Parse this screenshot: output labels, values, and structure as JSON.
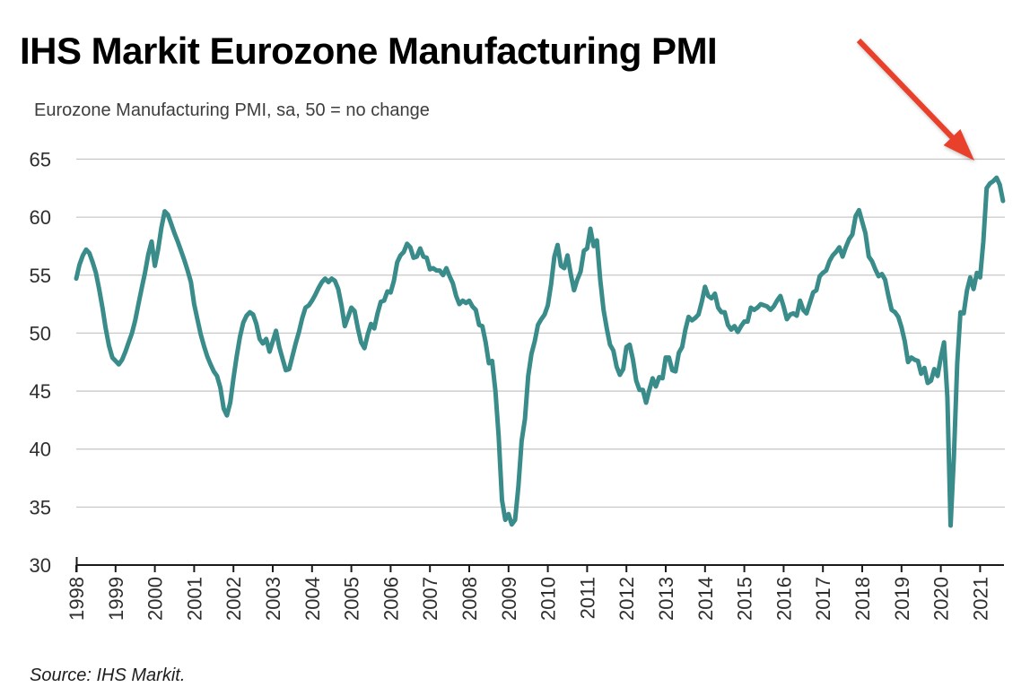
{
  "title": "IHS Markit Eurozone Manufacturing PMI",
  "subtitle": "Eurozone Manufacturing PMI, sa, 50 = no change",
  "source": "Source: IHS Markit.",
  "colors": {
    "line": "#398c8a",
    "arrow": "#e8402a",
    "grid": "#c9c9c9",
    "axis": "#1a1a1a",
    "tick_text": "#2e2e2e"
  },
  "chart_data": {
    "type": "line",
    "title": "Eurozone Manufacturing PMI, sa, 50 = no change",
    "series_name": "Eurozone Manufacturing PMI (sa)",
    "frequency": "monthly",
    "first_month": "1998-01",
    "last_month": "2021-08",
    "xlabel": "",
    "ylabel": "",
    "ylim": [
      30,
      65
    ],
    "grid": "horizontal",
    "legend_position": "none",
    "x_ticks": [
      1998,
      1999,
      2000,
      2001,
      2002,
      2003,
      2004,
      2005,
      2006,
      2007,
      2008,
      2009,
      2010,
      2011,
      2012,
      2013,
      2014,
      2015,
      2016,
      2017,
      2018,
      2019,
      2020,
      2021
    ],
    "y_ticks": [
      30,
      35,
      40,
      45,
      50,
      55,
      60,
      65
    ],
    "values_by_year": {
      "1998": [
        54.7,
        55.9,
        56.7,
        57.2,
        56.9,
        56.1,
        55.2,
        53.8,
        52.2,
        50.4,
        48.9,
        47.9
      ],
      "1999": [
        47.6,
        47.3,
        47.7,
        48.4,
        49.2,
        50.0,
        51.1,
        52.5,
        53.9,
        55.2,
        56.8,
        57.9
      ],
      "2000": [
        55.8,
        57.2,
        59.1,
        60.5,
        60.2,
        59.4,
        58.6,
        57.9,
        57.1,
        56.3,
        55.4,
        54.4
      ],
      "2001": [
        52.5,
        51.2,
        49.9,
        48.9,
        48.0,
        47.3,
        46.7,
        46.3,
        45.3,
        43.5,
        42.9,
        44.0
      ],
      "2002": [
        46.1,
        48.0,
        49.7,
        50.9,
        51.5,
        51.8,
        51.6,
        50.8,
        49.5,
        49.1,
        49.5,
        48.4
      ],
      "2003": [
        49.3,
        50.2,
        48.8,
        47.8,
        46.8,
        46.9,
        48.0,
        49.1,
        50.1,
        51.3,
        52.2,
        52.4
      ],
      "2004": [
        52.8,
        53.3,
        53.9,
        54.4,
        54.7,
        54.4,
        54.7,
        54.5,
        53.8,
        52.4,
        50.6,
        51.4
      ],
      "2005": [
        52.2,
        51.9,
        50.4,
        49.2,
        48.7,
        49.9,
        50.8,
        50.4,
        51.7,
        52.7,
        52.8,
        53.6
      ],
      "2006": [
        53.5,
        54.5,
        56.1,
        56.7,
        57.0,
        57.7,
        57.4,
        56.5,
        56.6,
        57.3,
        56.6,
        56.5
      ],
      "2007": [
        55.5,
        55.6,
        55.4,
        55.4,
        55.0,
        55.6,
        54.9,
        54.3,
        53.2,
        52.5,
        52.8,
        52.6
      ],
      "2008": [
        52.8,
        52.3,
        52.0,
        50.7,
        50.6,
        49.2,
        47.4,
        47.6,
        45.0,
        41.1,
        35.6,
        33.9
      ],
      "2009": [
        34.4,
        33.5,
        33.9,
        36.8,
        40.7,
        42.6,
        46.3,
        48.2,
        49.3,
        50.7,
        51.2,
        51.6
      ],
      "2010": [
        52.4,
        54.2,
        56.6,
        57.6,
        55.8,
        55.6,
        56.7,
        55.1,
        53.7,
        54.6,
        55.3,
        57.1
      ],
      "2011": [
        57.3,
        59.0,
        57.5,
        58.0,
        54.6,
        52.0,
        50.4,
        49.0,
        48.5,
        47.1,
        46.4,
        46.9
      ],
      "2012": [
        48.8,
        49.0,
        47.7,
        45.9,
        45.1,
        45.1,
        44.0,
        45.1,
        46.1,
        45.4,
        46.2,
        46.1
      ],
      "2013": [
        47.9,
        47.9,
        46.8,
        46.7,
        48.3,
        48.8,
        50.3,
        51.4,
        51.1,
        51.3,
        51.6,
        52.7
      ],
      "2014": [
        54.0,
        53.2,
        53.0,
        53.4,
        52.2,
        51.8,
        51.8,
        50.7,
        50.3,
        50.6,
        50.1,
        50.6
      ],
      "2015": [
        51.0,
        51.0,
        52.2,
        52.0,
        52.2,
        52.5,
        52.4,
        52.3,
        52.0,
        52.3,
        52.8,
        53.2
      ],
      "2016": [
        52.3,
        51.2,
        51.6,
        51.7,
        51.5,
        52.8,
        52.0,
        51.7,
        52.6,
        53.5,
        53.7,
        54.9
      ],
      "2017": [
        55.2,
        55.4,
        56.2,
        56.7,
        57.0,
        57.4,
        56.6,
        57.4,
        58.1,
        58.5,
        60.1,
        60.6
      ],
      "2018": [
        59.6,
        58.6,
        56.6,
        56.2,
        55.5,
        54.9,
        55.1,
        54.6,
        53.2,
        52.0,
        51.8,
        51.4
      ],
      "2019": [
        50.5,
        49.3,
        47.5,
        47.9,
        47.7,
        47.6,
        46.5,
        47.0,
        45.7,
        45.9,
        46.9,
        46.3
      ],
      "2020": [
        47.9,
        49.2,
        44.5,
        33.4,
        39.4,
        47.4,
        51.8,
        51.7,
        53.7,
        54.8,
        53.8,
        55.2
      ],
      "2021": [
        54.8,
        57.9,
        62.5,
        62.9,
        63.1,
        63.4,
        62.8,
        61.4
      ]
    },
    "annotation_arrow": {
      "points_to": "2021 peak (Jun 2021 = 63.4)"
    }
  }
}
